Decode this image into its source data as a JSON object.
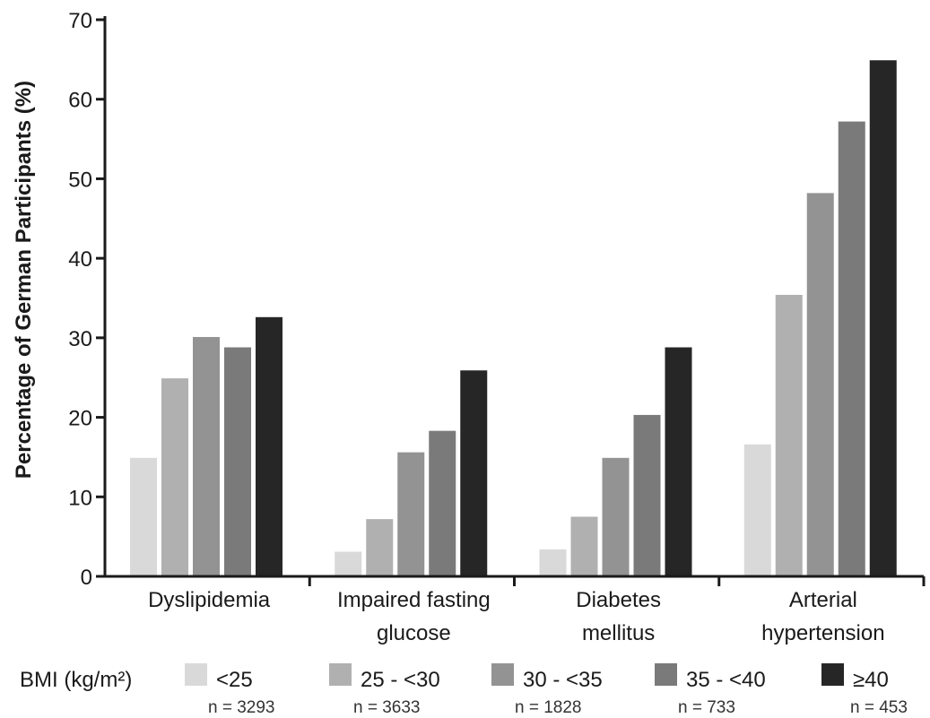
{
  "chart_data": {
    "type": "bar",
    "title": "",
    "ylabel": "Percentage of German Participants (%)",
    "xlabel": "",
    "ylim": [
      0,
      70
    ],
    "yticks": [
      0,
      10,
      20,
      30,
      40,
      50,
      60,
      70
    ],
    "categories": [
      [
        "Dyslipidemia"
      ],
      [
        "Impaired fasting",
        "glucose"
      ],
      [
        "Diabetes",
        "mellitus"
      ],
      [
        "Arterial",
        "hypertension"
      ]
    ],
    "series": [
      {
        "name": "<25",
        "n": "n = 3293",
        "color": "#d9d9d9",
        "values": [
          14.9,
          3.1,
          3.4,
          16.6
        ]
      },
      {
        "name": "25 - <30",
        "n": "n = 3633",
        "color": "#b0b0b0",
        "values": [
          24.9,
          7.2,
          7.5,
          35.4
        ]
      },
      {
        "name": "30 - <35",
        "n": "n = 1828",
        "color": "#939393",
        "values": [
          30.1,
          15.6,
          14.9,
          48.2
        ]
      },
      {
        "name": "35 - <40",
        "n": "n = 733",
        "color": "#7a7a7a",
        "values": [
          28.8,
          18.3,
          20.3,
          57.2
        ]
      },
      {
        "name": "≥40",
        "n": "n = 453",
        "color": "#262626",
        "values": [
          32.6,
          25.9,
          28.8,
          64.9
        ]
      }
    ],
    "legend": {
      "title": "BMI  (kg/m²)",
      "position": "bottom"
    },
    "grid": false
  }
}
